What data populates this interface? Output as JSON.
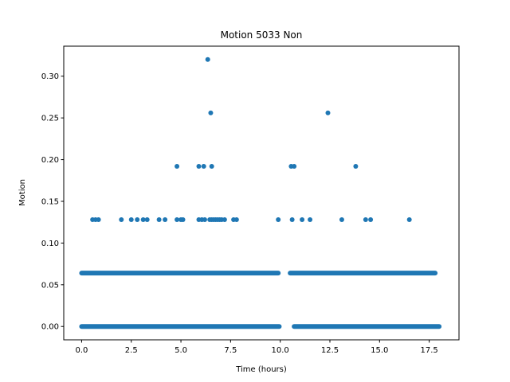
{
  "chart_data": {
    "type": "scatter",
    "title": "Motion 5033 Non",
    "xlabel": "Time (hours)",
    "ylabel": "Motion",
    "xlim": [
      -0.9,
      19.0
    ],
    "ylim": [
      -0.016,
      0.336
    ],
    "xticks": [
      0.0,
      2.5,
      5.0,
      7.5,
      10.0,
      12.5,
      15.0,
      17.5
    ],
    "xtick_labels": [
      "0.0",
      "2.5",
      "5.0",
      "7.5",
      "10.0",
      "12.5",
      "15.0",
      "17.5"
    ],
    "yticks": [
      0.0,
      0.05,
      0.1,
      0.15,
      0.2,
      0.25,
      0.3
    ],
    "ytick_labels": [
      "0.00",
      "0.05",
      "0.10",
      "0.15",
      "0.20",
      "0.25",
      "0.30"
    ],
    "grid": false,
    "color": "#1f77b4",
    "series": [
      {
        "dense_rows": [
          {
            "y": 0.0,
            "segments": [
              [
                0.0,
                9.95
              ],
              [
                10.7,
                18.0
              ]
            ]
          },
          {
            "y": 0.064,
            "segments": [
              [
                0.0,
                9.9
              ],
              [
                10.5,
                17.8
              ]
            ]
          }
        ],
        "points": [
          {
            "x": 0.55,
            "y": 0.128
          },
          {
            "x": 0.7,
            "y": 0.128
          },
          {
            "x": 0.85,
            "y": 0.128
          },
          {
            "x": 2.0,
            "y": 0.128
          },
          {
            "x": 2.5,
            "y": 0.128
          },
          {
            "x": 2.8,
            "y": 0.128
          },
          {
            "x": 3.1,
            "y": 0.128
          },
          {
            "x": 3.3,
            "y": 0.128
          },
          {
            "x": 3.9,
            "y": 0.128
          },
          {
            "x": 4.2,
            "y": 0.128
          },
          {
            "x": 4.8,
            "y": 0.128
          },
          {
            "x": 5.0,
            "y": 0.128
          },
          {
            "x": 5.1,
            "y": 0.128
          },
          {
            "x": 5.9,
            "y": 0.128
          },
          {
            "x": 6.05,
            "y": 0.128
          },
          {
            "x": 6.2,
            "y": 0.128
          },
          {
            "x": 6.45,
            "y": 0.128
          },
          {
            "x": 6.55,
            "y": 0.128
          },
          {
            "x": 6.65,
            "y": 0.128
          },
          {
            "x": 6.75,
            "y": 0.128
          },
          {
            "x": 6.85,
            "y": 0.128
          },
          {
            "x": 6.95,
            "y": 0.128
          },
          {
            "x": 7.05,
            "y": 0.128
          },
          {
            "x": 7.2,
            "y": 0.128
          },
          {
            "x": 7.65,
            "y": 0.128
          },
          {
            "x": 7.8,
            "y": 0.128
          },
          {
            "x": 9.9,
            "y": 0.128
          },
          {
            "x": 10.6,
            "y": 0.128
          },
          {
            "x": 11.1,
            "y": 0.128
          },
          {
            "x": 11.5,
            "y": 0.128
          },
          {
            "x": 13.1,
            "y": 0.128
          },
          {
            "x": 14.3,
            "y": 0.128
          },
          {
            "x": 14.55,
            "y": 0.128
          },
          {
            "x": 16.5,
            "y": 0.128
          },
          {
            "x": 4.8,
            "y": 0.192
          },
          {
            "x": 5.9,
            "y": 0.192
          },
          {
            "x": 6.15,
            "y": 0.192
          },
          {
            "x": 6.55,
            "y": 0.192
          },
          {
            "x": 10.55,
            "y": 0.192
          },
          {
            "x": 10.7,
            "y": 0.192
          },
          {
            "x": 13.8,
            "y": 0.192
          },
          {
            "x": 6.5,
            "y": 0.256
          },
          {
            "x": 12.4,
            "y": 0.256
          },
          {
            "x": 6.35,
            "y": 0.32
          }
        ]
      }
    ]
  }
}
